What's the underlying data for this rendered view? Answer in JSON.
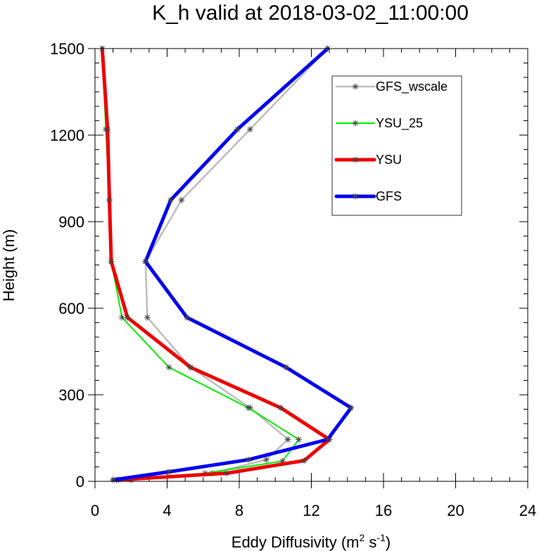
{
  "chart_data": {
    "type": "line",
    "title": "K_h valid at 2018-03-02_11:00:00",
    "xlabel": "Eddy Diffusivity (m",
    "xlabel_sup1": "2",
    "xlabel_mid": " s",
    "xlabel_sup2": "-1",
    "xlabel_end": ")",
    "ylabel": "Height (m)",
    "xlim": [
      0,
      24
    ],
    "ylim": [
      0,
      1500
    ],
    "xticks": [
      0,
      4,
      8,
      12,
      16,
      20,
      24
    ],
    "yticks": [
      0,
      300,
      600,
      900,
      1200,
      1500
    ],
    "x_minor_step": 1,
    "y_minor_step": 50,
    "legend_position": "top-right",
    "series": [
      {
        "name": "GFS_wscale",
        "color": "#bdbdbd",
        "line_width": 2.5,
        "marker": "asterisk",
        "points": [
          [
            2.0,
            5
          ],
          [
            6.5,
            28
          ],
          [
            9.5,
            75
          ],
          [
            10.7,
            145
          ],
          [
            8.6,
            255
          ],
          [
            5.3,
            395
          ],
          [
            2.9,
            568
          ],
          [
            2.8,
            762
          ],
          [
            4.8,
            975
          ],
          [
            8.6,
            1220
          ],
          [
            12.9,
            1500
          ]
        ]
      },
      {
        "name": "YSU_25",
        "color": "#00ee00",
        "line_width": 2,
        "marker": "asterisk",
        "points": [
          [
            1.3,
            5
          ],
          [
            6.1,
            28
          ],
          [
            10.4,
            70
          ],
          [
            11.3,
            145
          ],
          [
            8.5,
            255
          ],
          [
            4.1,
            395
          ],
          [
            1.5,
            568
          ],
          [
            0.9,
            762
          ],
          [
            0.8,
            975
          ],
          [
            0.6,
            1220
          ],
          [
            0.4,
            1500
          ]
        ]
      },
      {
        "name": "YSU",
        "color": "#ee0000",
        "line_width": 5,
        "marker": "asterisk",
        "points": [
          [
            1.2,
            5
          ],
          [
            7.3,
            28
          ],
          [
            11.6,
            72
          ],
          [
            13.0,
            145
          ],
          [
            10.3,
            255
          ],
          [
            5.3,
            395
          ],
          [
            1.8,
            568
          ],
          [
            0.9,
            762
          ],
          [
            0.8,
            975
          ],
          [
            0.7,
            1220
          ],
          [
            0.4,
            1500
          ]
        ]
      },
      {
        "name": "GFS",
        "color": "#0000ee",
        "line_width": 5,
        "marker": "asterisk",
        "points": [
          [
            1.0,
            5
          ],
          [
            4.1,
            33
          ],
          [
            8.5,
            75
          ],
          [
            12.9,
            145
          ],
          [
            14.2,
            255
          ],
          [
            10.6,
            395
          ],
          [
            5.1,
            568
          ],
          [
            2.8,
            762
          ],
          [
            4.2,
            975
          ],
          [
            7.9,
            1220
          ],
          [
            12.9,
            1500
          ]
        ]
      }
    ]
  }
}
